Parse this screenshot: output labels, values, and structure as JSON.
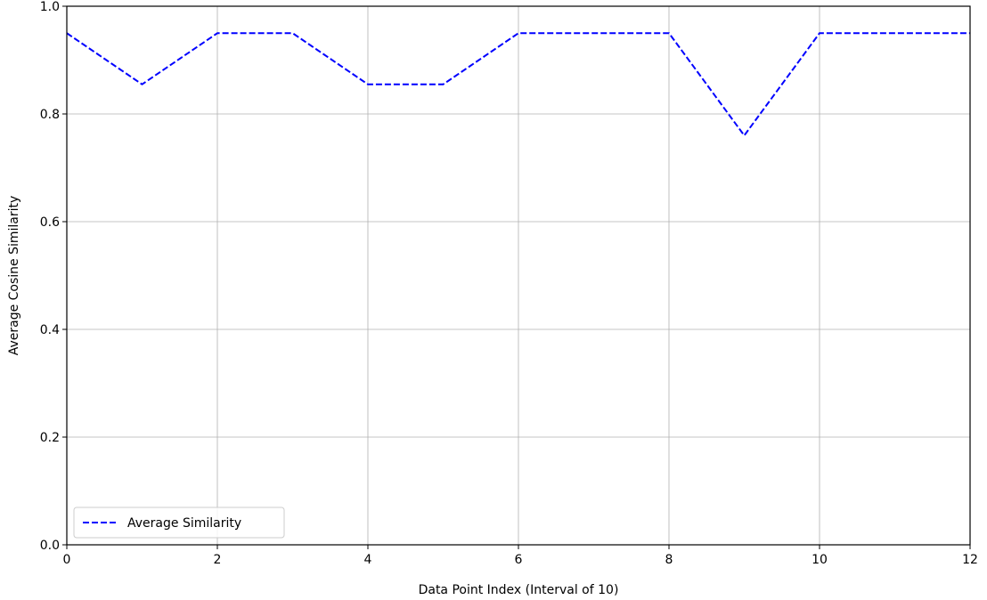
{
  "chart_data": {
    "type": "line",
    "title": "",
    "xlabel": "Data Point Index (Interval of 10)",
    "ylabel": "Average Cosine Similarity",
    "xlim": [
      0,
      12
    ],
    "ylim": [
      0.0,
      1.0
    ],
    "xticks": [
      "0",
      "2",
      "4",
      "6",
      "8",
      "10",
      "12"
    ],
    "yticks": [
      "0.0",
      "0.2",
      "0.4",
      "0.6",
      "0.8",
      "1.0"
    ],
    "grid": true,
    "legend_position": "lower-left",
    "series": [
      {
        "name": "Average Similarity",
        "color": "#0000ff",
        "line_style": "dashed",
        "x": [
          0,
          1,
          2,
          3,
          4,
          5,
          6,
          7,
          8,
          9,
          10,
          11,
          12
        ],
        "values": [
          0.95,
          0.855,
          0.95,
          0.95,
          0.855,
          0.855,
          0.95,
          0.95,
          0.95,
          0.76,
          0.95,
          0.95,
          0.95
        ]
      }
    ]
  }
}
